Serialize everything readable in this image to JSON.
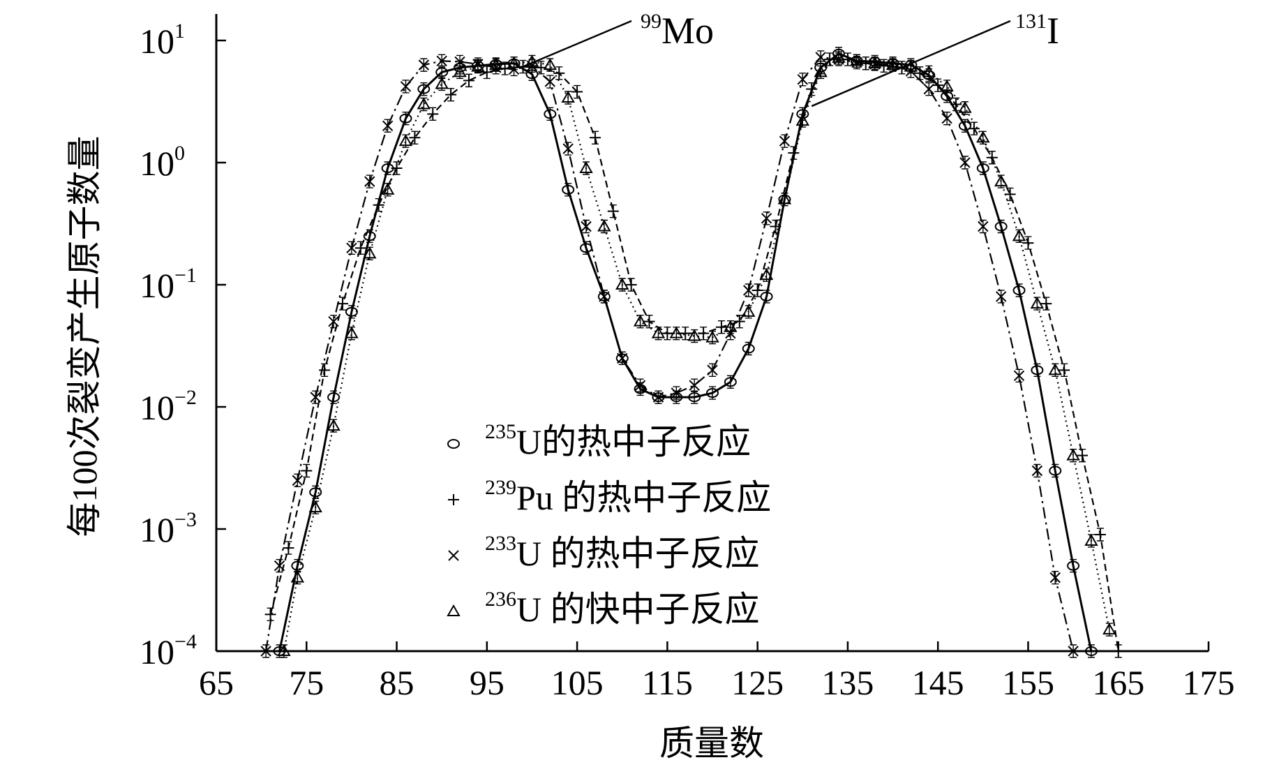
{
  "chart_data": {
    "type": "line",
    "title": "",
    "xlabel": "质量数",
    "ylabel": "每100次裂变产生原子数量",
    "xlim": [
      65,
      175
    ],
    "ylim": [
      0.0001,
      10
    ],
    "yscale": "log",
    "xticks": [
      "65",
      "75",
      "85",
      "95",
      "105",
      "115",
      "125",
      "135",
      "145",
      "155",
      "165",
      "175"
    ],
    "yticks": [
      {
        "base": "10",
        "exp": "1"
      },
      {
        "base": "10",
        "exp": "0"
      },
      {
        "base": "10",
        "exp": "−1"
      },
      {
        "base": "10",
        "exp": "−2"
      },
      {
        "base": "10",
        "exp": "−3"
      },
      {
        "base": "10",
        "exp": "−4"
      }
    ],
    "grid": false,
    "legend_position": "bottom-center",
    "annotations": [
      {
        "sup": "99",
        "label": "Mo",
        "x": 99,
        "y": 6.1
      },
      {
        "sup": "131",
        "label": "I",
        "x": 131,
        "y": 2.9
      }
    ],
    "series": [
      {
        "name_sup": "235",
        "name_main": "U的热中子反应",
        "marker": "o",
        "line": "solid",
        "x": [
          72,
          74,
          76,
          78,
          80,
          82,
          84,
          86,
          88,
          90,
          92,
          94,
          96,
          98,
          100,
          102,
          104,
          106,
          108,
          110,
          112,
          114,
          116,
          118,
          120,
          122,
          124,
          126,
          128,
          130,
          132,
          134,
          136,
          138,
          140,
          142,
          144,
          146,
          148,
          150,
          152,
          154,
          156,
          158,
          160,
          162
        ],
        "y": [
          0.0001,
          0.0005,
          0.002,
          0.012,
          0.06,
          0.25,
          0.9,
          2.3,
          4.0,
          5.5,
          6.0,
          6.2,
          6.4,
          6.5,
          5.3,
          2.5,
          0.6,
          0.2,
          0.08,
          0.025,
          0.014,
          0.012,
          0.012,
          0.012,
          0.013,
          0.016,
          0.03,
          0.08,
          0.5,
          2.5,
          6.0,
          7.8,
          6.8,
          6.7,
          6.5,
          6.3,
          5.2,
          3.5,
          2.0,
          0.9,
          0.3,
          0.09,
          0.02,
          0.003,
          0.0005,
          0.0001
        ]
      },
      {
        "name_sup": "239",
        "name_main": "Pu 的热中子反应",
        "marker": "+",
        "line": "dashed",
        "x": [
          71,
          73,
          75,
          77,
          79,
          81,
          83,
          85,
          87,
          89,
          91,
          93,
          95,
          97,
          99,
          101,
          103,
          105,
          107,
          109,
          111,
          113,
          115,
          117,
          119,
          121,
          123,
          125,
          127,
          129,
          131,
          133,
          135,
          137,
          139,
          141,
          143,
          145,
          147,
          149,
          151,
          153,
          155,
          157,
          159,
          161,
          163,
          165
        ],
        "y": [
          0.0002,
          0.0007,
          0.003,
          0.02,
          0.07,
          0.2,
          0.45,
          0.9,
          1.6,
          2.5,
          3.6,
          4.7,
          5.5,
          5.9,
          6.1,
          6.0,
          5.4,
          3.8,
          1.6,
          0.4,
          0.1,
          0.05,
          0.04,
          0.04,
          0.04,
          0.045,
          0.05,
          0.09,
          0.3,
          1.2,
          4.0,
          7.0,
          7.0,
          6.5,
          6.2,
          6.0,
          5.4,
          4.3,
          3.0,
          1.9,
          1.1,
          0.55,
          0.22,
          0.07,
          0.02,
          0.004,
          0.0009,
          0.0001
        ]
      },
      {
        "name_sup": "233",
        "name_main": "U 的热中子反应",
        "marker": "x",
        "line": "dashdot",
        "x": [
          70.5,
          72,
          74,
          76,
          78,
          80,
          82,
          84,
          86,
          88,
          90,
          92,
          94,
          96,
          98,
          100,
          102,
          104,
          106,
          108,
          110,
          112,
          114,
          116,
          118,
          120,
          122,
          124,
          126,
          128,
          130,
          132,
          134,
          136,
          138,
          140,
          142,
          144,
          146,
          148,
          150,
          152,
          154,
          156,
          158,
          160
        ],
        "y": [
          0.0001,
          0.0005,
          0.0025,
          0.012,
          0.05,
          0.2,
          0.7,
          2.0,
          4.2,
          6.3,
          6.8,
          6.7,
          6.4,
          6.0,
          5.8,
          6.2,
          4.6,
          1.3,
          0.3,
          0.08,
          0.025,
          0.015,
          0.012,
          0.013,
          0.015,
          0.02,
          0.04,
          0.09,
          0.35,
          1.5,
          4.8,
          7.3,
          7.0,
          6.6,
          6.4,
          6.3,
          5.6,
          4.0,
          2.3,
          1.0,
          0.3,
          0.08,
          0.018,
          0.003,
          0.0004,
          0.0001
        ]
      },
      {
        "name_sup": "236",
        "name_main": "U 的快中子反应",
        "marker": "^",
        "line": "dotted",
        "x": [
          72.5,
          74,
          76,
          78,
          80,
          82,
          84,
          86,
          88,
          90,
          92,
          94,
          96,
          98,
          100,
          102,
          104,
          106,
          108,
          110,
          112,
          114,
          116,
          118,
          120,
          122,
          124,
          126,
          128,
          130,
          132,
          134,
          136,
          138,
          140,
          142,
          144,
          146,
          148,
          150,
          152,
          154,
          156,
          158,
          160,
          162,
          164
        ],
        "y": [
          0.0001,
          0.0004,
          0.0015,
          0.007,
          0.04,
          0.18,
          0.6,
          1.5,
          3.0,
          4.4,
          5.5,
          6.1,
          6.3,
          6.5,
          6.7,
          6.3,
          3.4,
          0.9,
          0.3,
          0.1,
          0.05,
          0.04,
          0.04,
          0.038,
          0.037,
          0.045,
          0.06,
          0.12,
          0.5,
          2.2,
          5.5,
          7.2,
          6.8,
          6.5,
          6.3,
          6.1,
          5.5,
          4.2,
          2.8,
          1.6,
          0.7,
          0.25,
          0.07,
          0.02,
          0.004,
          0.0008,
          0.00015
        ]
      }
    ]
  }
}
